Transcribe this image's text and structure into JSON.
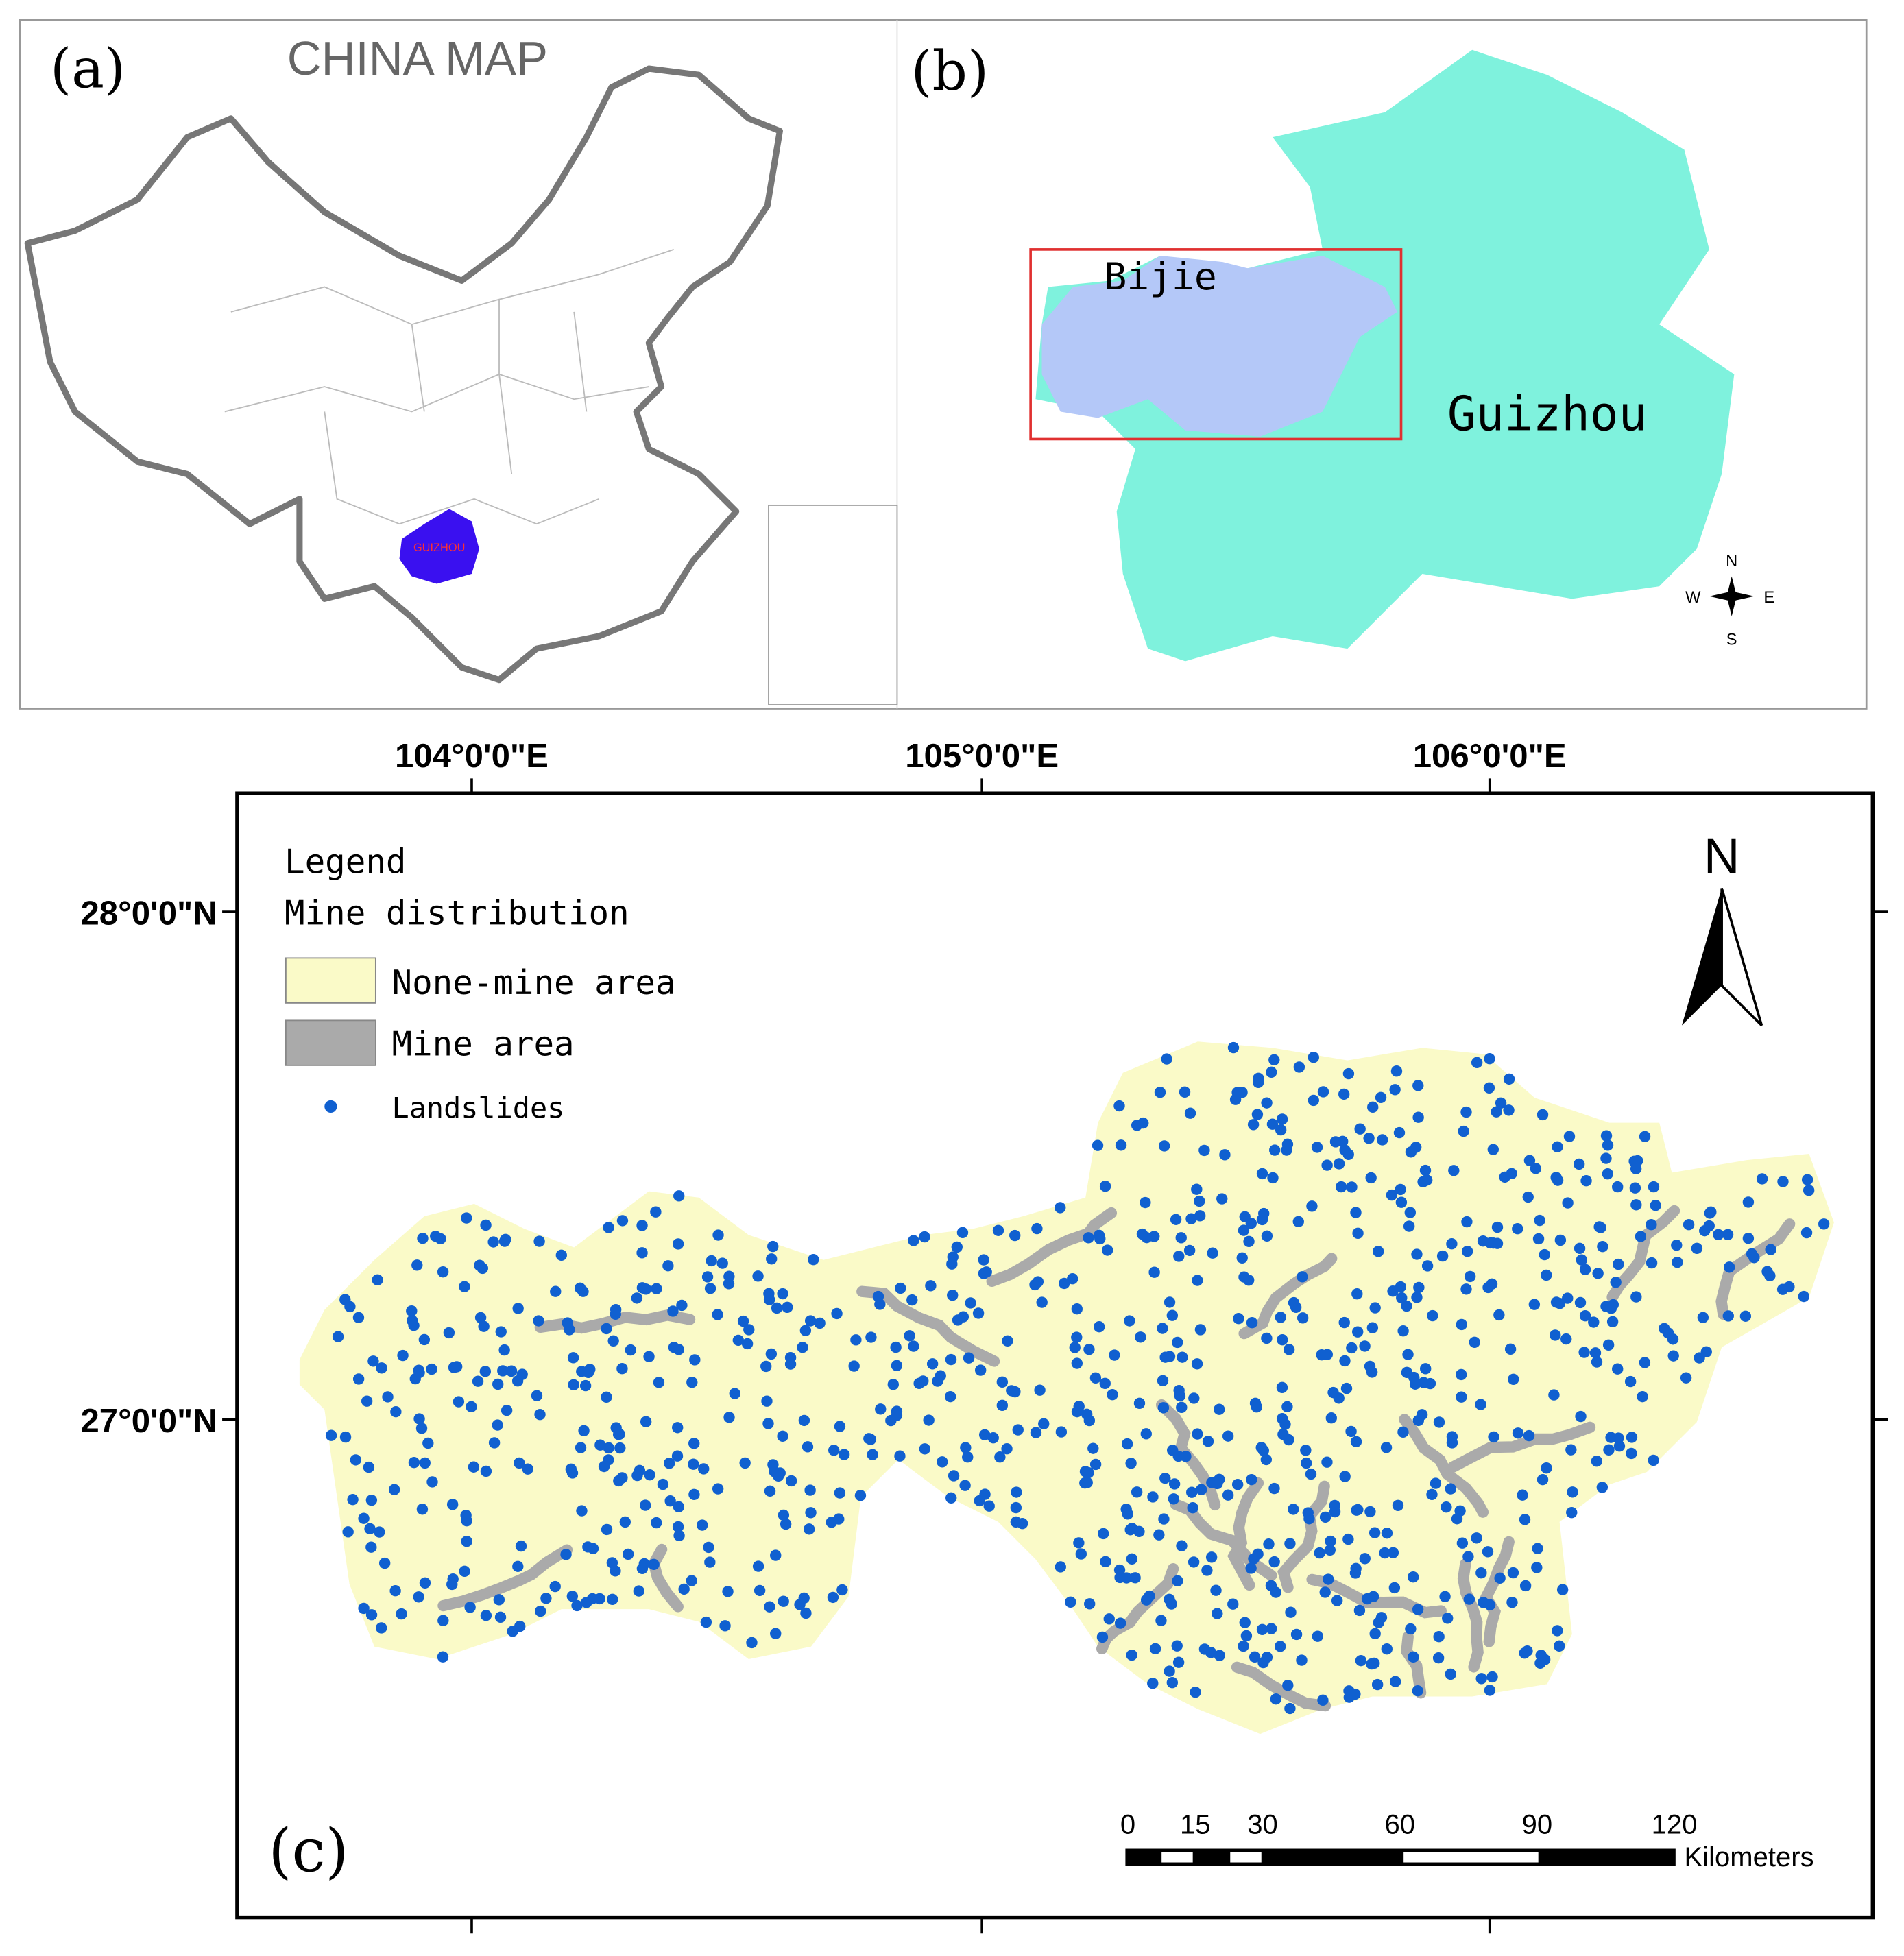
{
  "panel_a": {
    "label": "(a)",
    "title": "CHINA MAP",
    "highlight": "GUIZHOU"
  },
  "panel_b": {
    "label": "(b)",
    "region": "Bijie",
    "province": "Guizhou",
    "compass": {
      "n": "N",
      "w": "W",
      "e": "E",
      "s": "S"
    }
  },
  "panel_c": {
    "label": "(c)",
    "longitudes": [
      "104°0'0\"E",
      "105°0'0\"E",
      "106°0'0\"E"
    ],
    "latitudes": [
      "28°0'0\"N",
      "27°0'0\"N"
    ],
    "north": "N",
    "legend": {
      "title": "Legend",
      "subtitle": "Mine distribution",
      "items": [
        "None-mine area",
        "Mine area",
        "Landslides"
      ]
    },
    "scale": {
      "ticks": [
        "0",
        "15",
        "30",
        "60",
        "90",
        "120"
      ],
      "unit": "Kilometers"
    }
  }
}
